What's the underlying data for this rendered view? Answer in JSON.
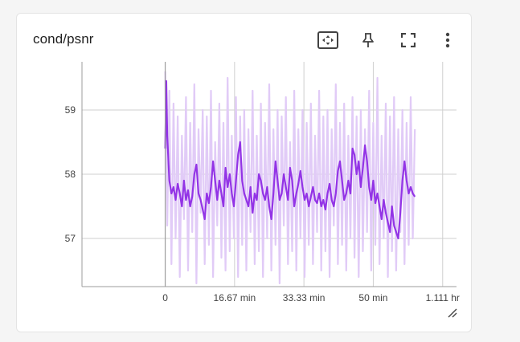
{
  "card": {
    "title": "cond/psnr"
  },
  "toolbar": {
    "fit_domain_icon": "fit-to-data-icon",
    "pin_icon": "pin-icon",
    "fullscreen_icon": "fullscreen-icon",
    "more_icon": "more-vert-icon"
  },
  "colors": {
    "smoothed": "#9334e6",
    "raw": "#e1cbf7",
    "grid": "#cfcfcf",
    "axis": "#9e9e9e"
  },
  "chart_data": {
    "type": "line",
    "title": "cond/psnr",
    "xlabel": "",
    "ylabel": "",
    "x_unit": "min",
    "xlim": [
      -20,
      70
    ],
    "ylim": [
      56.25,
      59.75
    ],
    "x_ticks": [
      {
        "value": 0,
        "label": "0"
      },
      {
        "value": 16.67,
        "label": "16.67 min"
      },
      {
        "value": 33.33,
        "label": "33.33 min"
      },
      {
        "value": 50,
        "label": "50 min"
      },
      {
        "value": 66.67,
        "label": "1.111 hr"
      }
    ],
    "y_ticks": [
      {
        "value": 57,
        "label": "57"
      },
      {
        "value": 58,
        "label": "58"
      },
      {
        "value": 59,
        "label": "59"
      }
    ],
    "grid": true,
    "series": [
      {
        "name": "raw",
        "x": [
          0,
          0.5,
          1,
          1.5,
          2,
          2.5,
          3,
          3.5,
          4,
          4.5,
          5,
          5.5,
          6,
          6.5,
          7,
          7.5,
          8,
          8.5,
          9,
          9.5,
          10,
          10.5,
          11,
          11.5,
          12,
          12.5,
          13,
          13.5,
          14,
          14.5,
          15,
          15.5,
          16,
          16.5,
          17,
          17.5,
          18,
          18.5,
          19,
          19.5,
          20,
          20.5,
          21,
          21.5,
          22,
          22.5,
          23,
          23.5,
          24,
          24.5,
          25,
          25.5,
          26,
          26.5,
          27,
          27.5,
          28,
          28.5,
          29,
          29.5,
          30,
          30.5,
          31,
          31.5,
          32,
          32.5,
          33,
          33.5,
          34,
          34.5,
          35,
          35.5,
          36,
          36.5,
          37,
          37.5,
          38,
          38.5,
          39,
          39.5,
          40,
          40.5,
          41,
          41.5,
          42,
          42.5,
          43,
          43.5,
          44,
          44.5,
          45,
          45.5,
          46,
          46.5,
          47,
          47.5,
          48,
          48.5,
          49,
          49.5,
          50,
          50.5,
          51,
          51.5,
          52,
          52.5,
          53,
          53.5,
          54,
          54.5,
          55,
          55.5,
          56,
          56.5,
          57,
          57.5,
          58,
          58.5,
          59,
          59.5,
          60
        ],
        "y": [
          59.6,
          57.2,
          59.3,
          56.6,
          59.1,
          57.0,
          58.9,
          56.4,
          58.6,
          57.3,
          59.2,
          56.5,
          58.8,
          57.1,
          59.4,
          56.3,
          58.7,
          57.4,
          59.0,
          56.6,
          58.9,
          56.9,
          59.3,
          56.4,
          58.5,
          57.2,
          59.1,
          56.7,
          58.8,
          56.5,
          59.5,
          56.8,
          58.6,
          57.0,
          59.2,
          56.4,
          58.9,
          56.9,
          59.0,
          56.5,
          58.7,
          57.1,
          59.3,
          56.6,
          58.6,
          56.8,
          59.1,
          56.4,
          58.8,
          57.0,
          59.4,
          56.5,
          58.7,
          56.9,
          59.0,
          56.3,
          58.9,
          57.2,
          59.2,
          56.6,
          58.5,
          56.8,
          59.3,
          56.5,
          58.7,
          57.0,
          59.0,
          56.4,
          58.8,
          56.9,
          59.1,
          56.6,
          58.6,
          57.1,
          59.3,
          56.5,
          58.9,
          56.8,
          59.0,
          56.4,
          58.7,
          57.2,
          59.4,
          56.6,
          58.8,
          56.9,
          59.1,
          56.5,
          58.6,
          57.0,
          59.2,
          56.7,
          58.9,
          56.4,
          59.0,
          56.8,
          58.7,
          57.1,
          59.3,
          56.5,
          58.8,
          56.9,
          59.5,
          56.6,
          58.6,
          57.0,
          59.1,
          56.4,
          58.9,
          56.8,
          59.2,
          56.5,
          58.7,
          57.1,
          59.0,
          56.6,
          58.8,
          56.9,
          59.2,
          57.0,
          58.7
        ]
      },
      {
        "name": "smoothed",
        "x": [
          0,
          0.25,
          0.5,
          1,
          1.5,
          2,
          2.5,
          3,
          3.5,
          4,
          4.5,
          5,
          5.5,
          6,
          6.5,
          7,
          7.5,
          8,
          8.5,
          9,
          9.5,
          10,
          10.5,
          11,
          11.5,
          12,
          12.5,
          13,
          13.5,
          14,
          14.5,
          15,
          15.5,
          16,
          16.5,
          17,
          17.5,
          18,
          18.5,
          19,
          19.5,
          20,
          20.5,
          21,
          21.5,
          22,
          22.5,
          23,
          23.5,
          24,
          24.5,
          25,
          25.5,
          26,
          26.5,
          27,
          27.5,
          28,
          28.5,
          29,
          29.5,
          30,
          30.5,
          31,
          31.5,
          32,
          32.5,
          33,
          33.5,
          34,
          34.5,
          35,
          35.5,
          36,
          36.5,
          37,
          37.5,
          38,
          38.5,
          39,
          39.5,
          40,
          40.5,
          41,
          41.5,
          42,
          42.5,
          43,
          43.5,
          44,
          44.5,
          45,
          45.5,
          46,
          46.5,
          47,
          47.5,
          48,
          48.5,
          49,
          49.5,
          50,
          50.5,
          51,
          51.5,
          52,
          52.5,
          53,
          53.5,
          54,
          54.5,
          55,
          55.5,
          56,
          56.5,
          57,
          57.5,
          58,
          58.5,
          59,
          59.5,
          60
        ],
        "y": [
          58.4,
          59.45,
          58.6,
          57.9,
          57.7,
          57.8,
          57.6,
          57.85,
          57.7,
          57.5,
          57.9,
          57.6,
          57.75,
          57.5,
          57.65,
          58.0,
          58.15,
          57.7,
          57.6,
          57.45,
          57.3,
          57.7,
          57.55,
          57.8,
          58.2,
          57.9,
          57.6,
          57.9,
          57.7,
          57.5,
          58.1,
          57.8,
          58.0,
          57.7,
          57.5,
          57.9,
          58.3,
          58.5,
          57.9,
          57.7,
          57.6,
          57.5,
          57.8,
          57.4,
          57.7,
          57.6,
          58.0,
          57.9,
          57.7,
          57.6,
          57.8,
          57.5,
          57.3,
          57.7,
          58.2,
          57.9,
          57.6,
          57.7,
          58.0,
          57.8,
          57.6,
          58.1,
          57.9,
          57.5,
          57.7,
          57.85,
          58.05,
          57.8,
          57.6,
          57.7,
          57.5,
          57.65,
          57.8,
          57.6,
          57.55,
          57.7,
          57.5,
          57.6,
          57.45,
          57.7,
          57.85,
          57.6,
          57.5,
          57.7,
          58.05,
          58.2,
          57.9,
          57.6,
          57.7,
          57.9,
          57.7,
          58.4,
          58.3,
          58.0,
          58.2,
          57.8,
          58.1,
          58.45,
          58.2,
          57.8,
          57.6,
          57.9,
          57.55,
          57.7,
          57.5,
          57.3,
          57.6,
          57.4,
          57.25,
          57.1,
          57.5,
          57.2,
          57.1,
          57.0,
          57.4,
          57.9,
          58.2,
          57.9,
          57.7,
          57.8,
          57.7,
          57.65
        ]
      }
    ]
  }
}
